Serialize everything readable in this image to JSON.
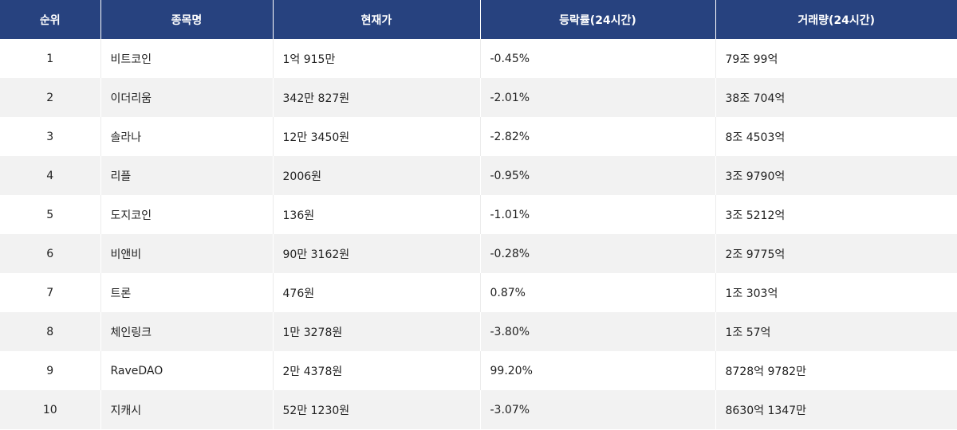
{
  "colors": {
    "header_bg": "#27427f",
    "header_text": "#ffffff",
    "row_alt_bg": "#f2f2f2",
    "row_bg": "#ffffff"
  },
  "table": {
    "headers": {
      "rank": "순위",
      "name": "종목명",
      "price": "현재가",
      "change": "등락률(24시간)",
      "volume": "거래량(24시간)"
    },
    "rows": [
      {
        "rank": "1",
        "name": "비트코인",
        "price": "1억 915만",
        "change": "-0.45%",
        "volume": "79조 99억"
      },
      {
        "rank": "2",
        "name": "이더리움",
        "price": "342만 827원",
        "change": "-2.01%",
        "volume": "38조 704억"
      },
      {
        "rank": "3",
        "name": "솔라나",
        "price": "12만 3450원",
        "change": "-2.82%",
        "volume": "8조 4503억"
      },
      {
        "rank": "4",
        "name": "리플",
        "price": "2006원",
        "change": "-0.95%",
        "volume": "3조 9790억"
      },
      {
        "rank": "5",
        "name": "도지코인",
        "price": "136원",
        "change": "-1.01%",
        "volume": "3조 5212억"
      },
      {
        "rank": "6",
        "name": "비앤비",
        "price": "90만 3162원",
        "change": "-0.28%",
        "volume": "2조 9775억"
      },
      {
        "rank": "7",
        "name": "트론",
        "price": "476원",
        "change": "0.87%",
        "volume": "1조 303억"
      },
      {
        "rank": "8",
        "name": "체인링크",
        "price": "1만 3278원",
        "change": "-3.80%",
        "volume": "1조 57억"
      },
      {
        "rank": "9",
        "name": "RaveDAO",
        "price": "2만 4378원",
        "change": "99.20%",
        "volume": "8728억 9782만"
      },
      {
        "rank": "10",
        "name": "지캐시",
        "price": "52만 1230원",
        "change": "-3.07%",
        "volume": "8630억 1347만"
      }
    ]
  }
}
